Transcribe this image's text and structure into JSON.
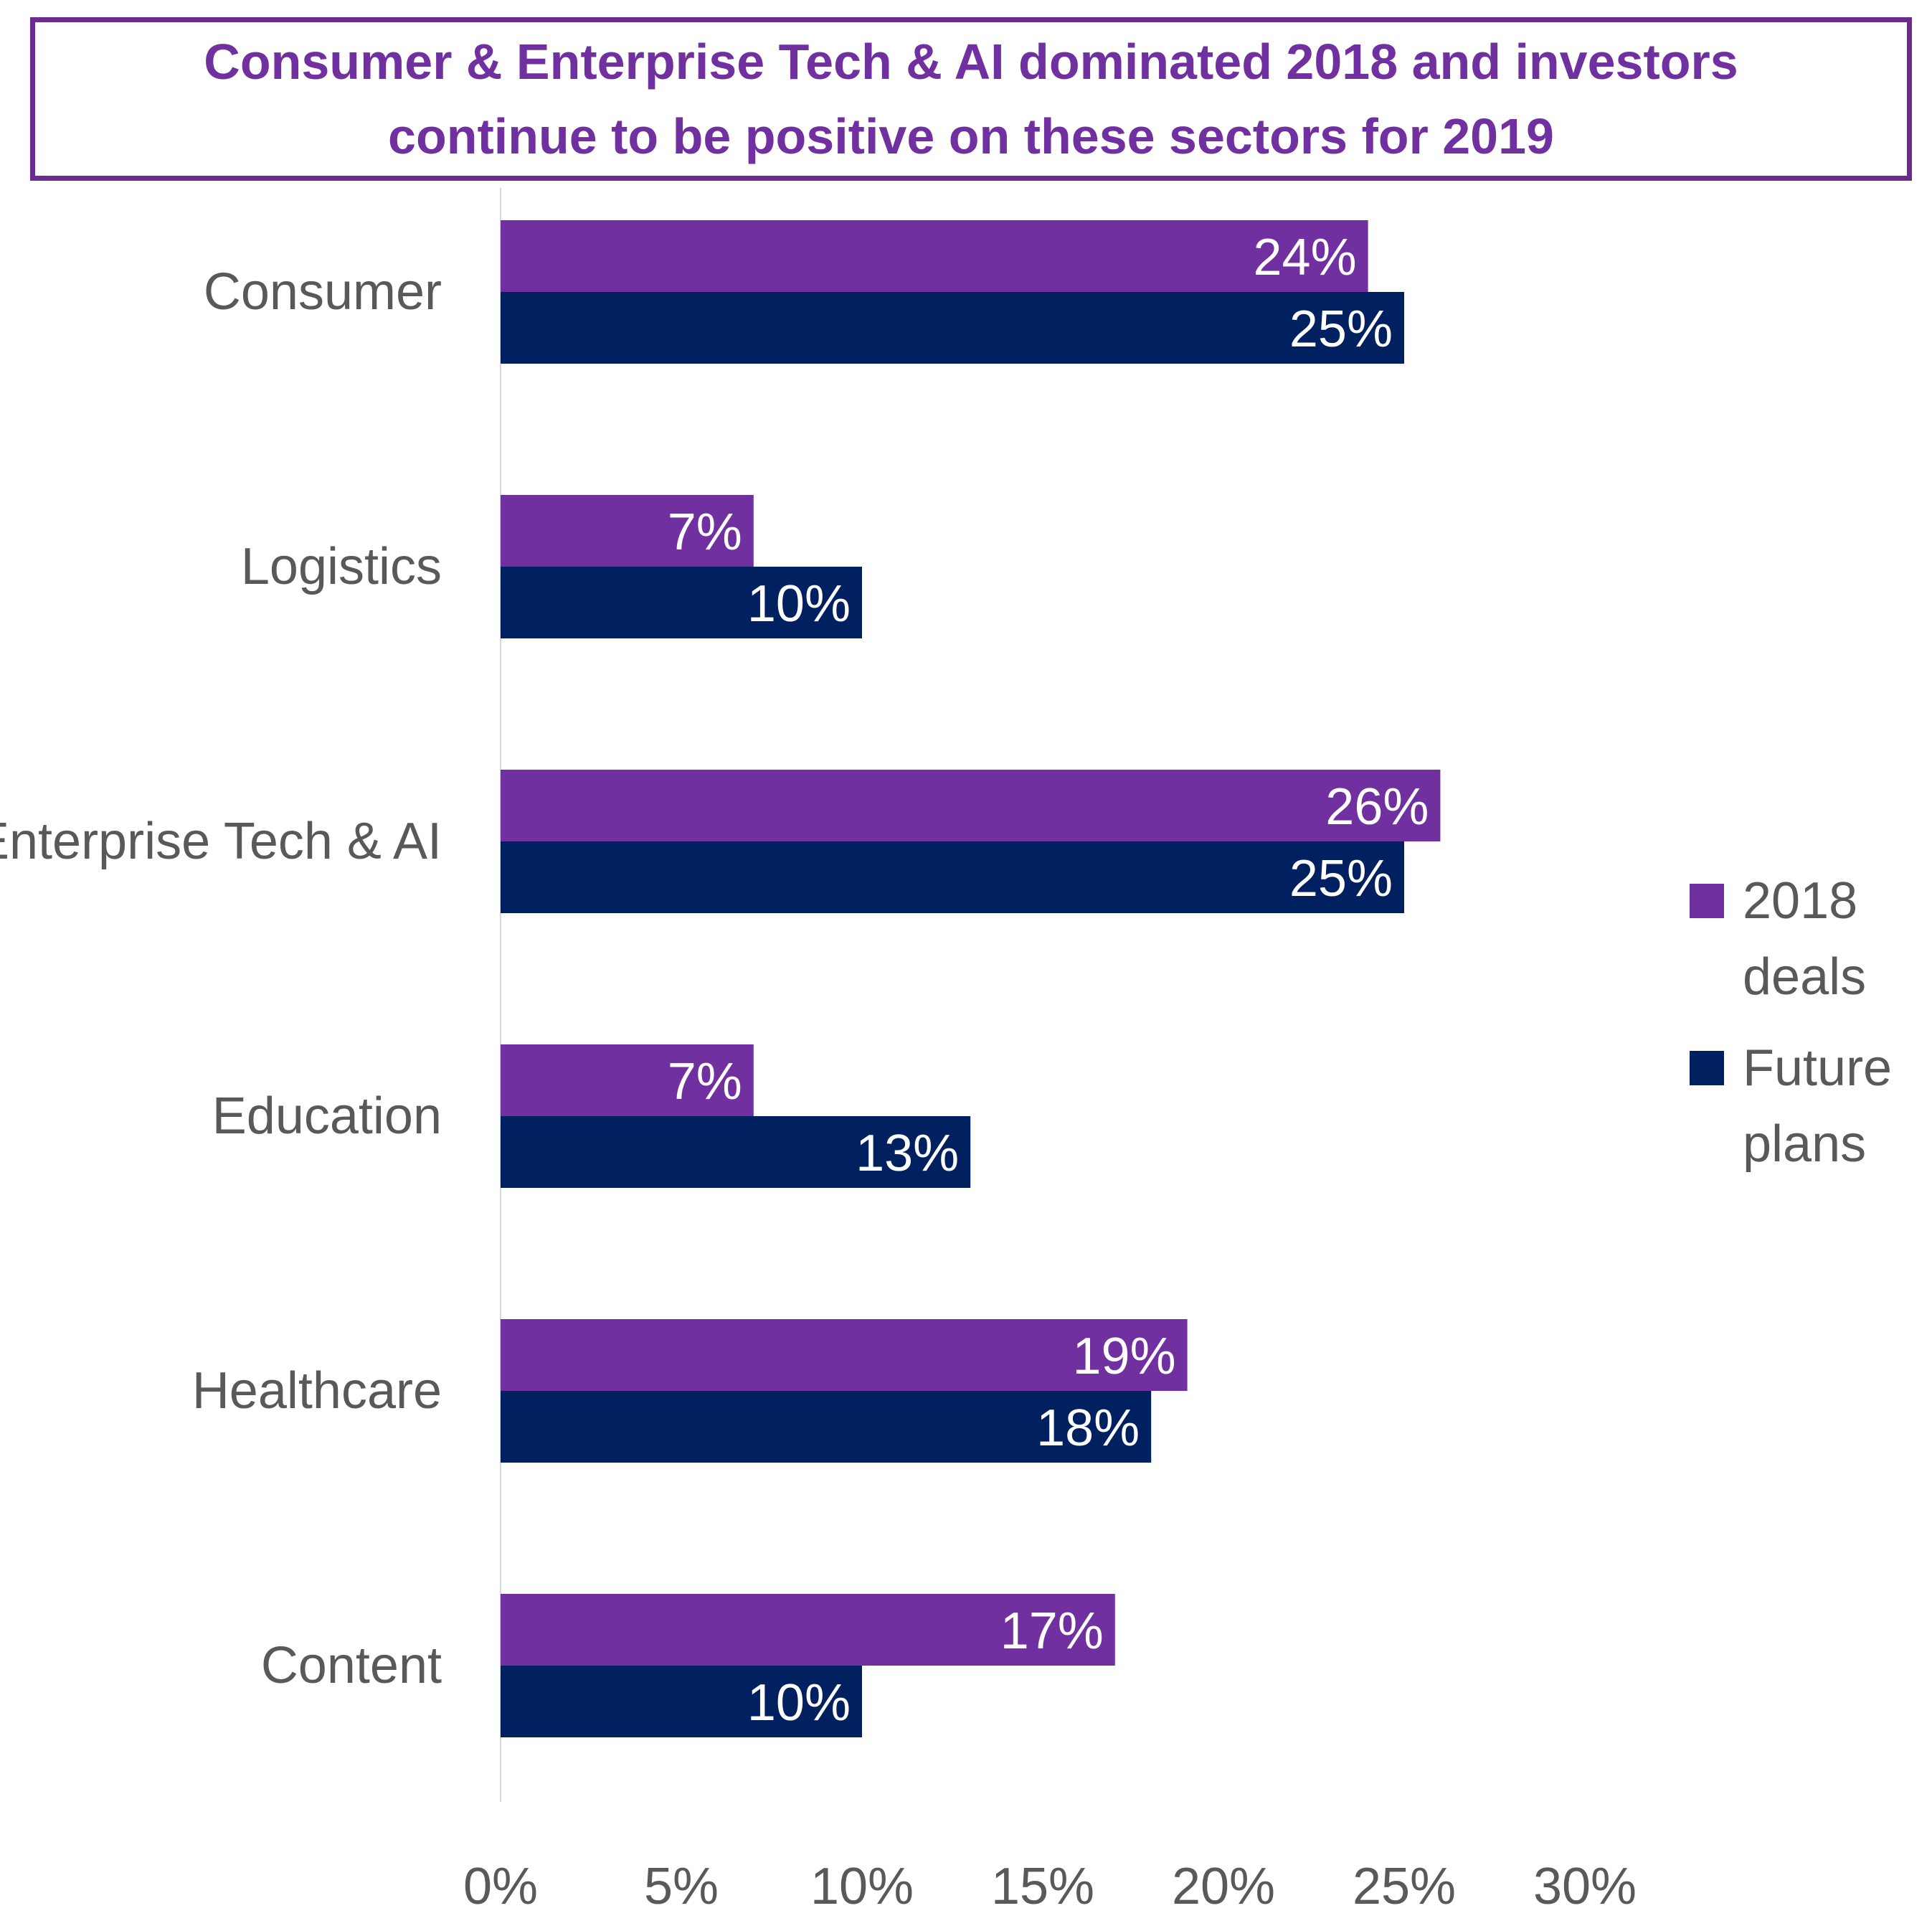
{
  "chart_data": {
    "type": "bar",
    "orientation": "horizontal",
    "title_lines": [
      "Consumer & Enterprise Tech & AI dominated 2018 and investors",
      "continue to be positive on these sectors for 2019"
    ],
    "categories": [
      "Consumer",
      "Logistics",
      "Enterprise Tech & AI",
      "Education",
      "Healthcare",
      "Content"
    ],
    "series": [
      {
        "name": "2018 deals",
        "color": "#7030a0",
        "values": [
          24,
          7,
          26,
          7,
          19,
          17
        ],
        "labels": [
          "24%",
          "7%",
          "26%",
          "7%",
          "19%",
          "17%"
        ]
      },
      {
        "name": "Future plans",
        "color": "#002060",
        "values": [
          25,
          10,
          25,
          13,
          18,
          10
        ],
        "labels": [
          "25%",
          "10%",
          "25%",
          "13%",
          "18%",
          "10%"
        ]
      }
    ],
    "legend_names": [
      [
        "2018",
        "deals"
      ],
      [
        "Future",
        "plans"
      ]
    ],
    "xlim": [
      0,
      30
    ],
    "xticks": [
      0,
      5,
      10,
      15,
      20,
      25,
      30
    ],
    "xtick_labels": [
      "0%",
      "5%",
      "10%",
      "15%",
      "20%",
      "25%",
      "30%"
    ],
    "xlabel": "",
    "ylabel": "",
    "grid": false,
    "legend_position": "right"
  }
}
